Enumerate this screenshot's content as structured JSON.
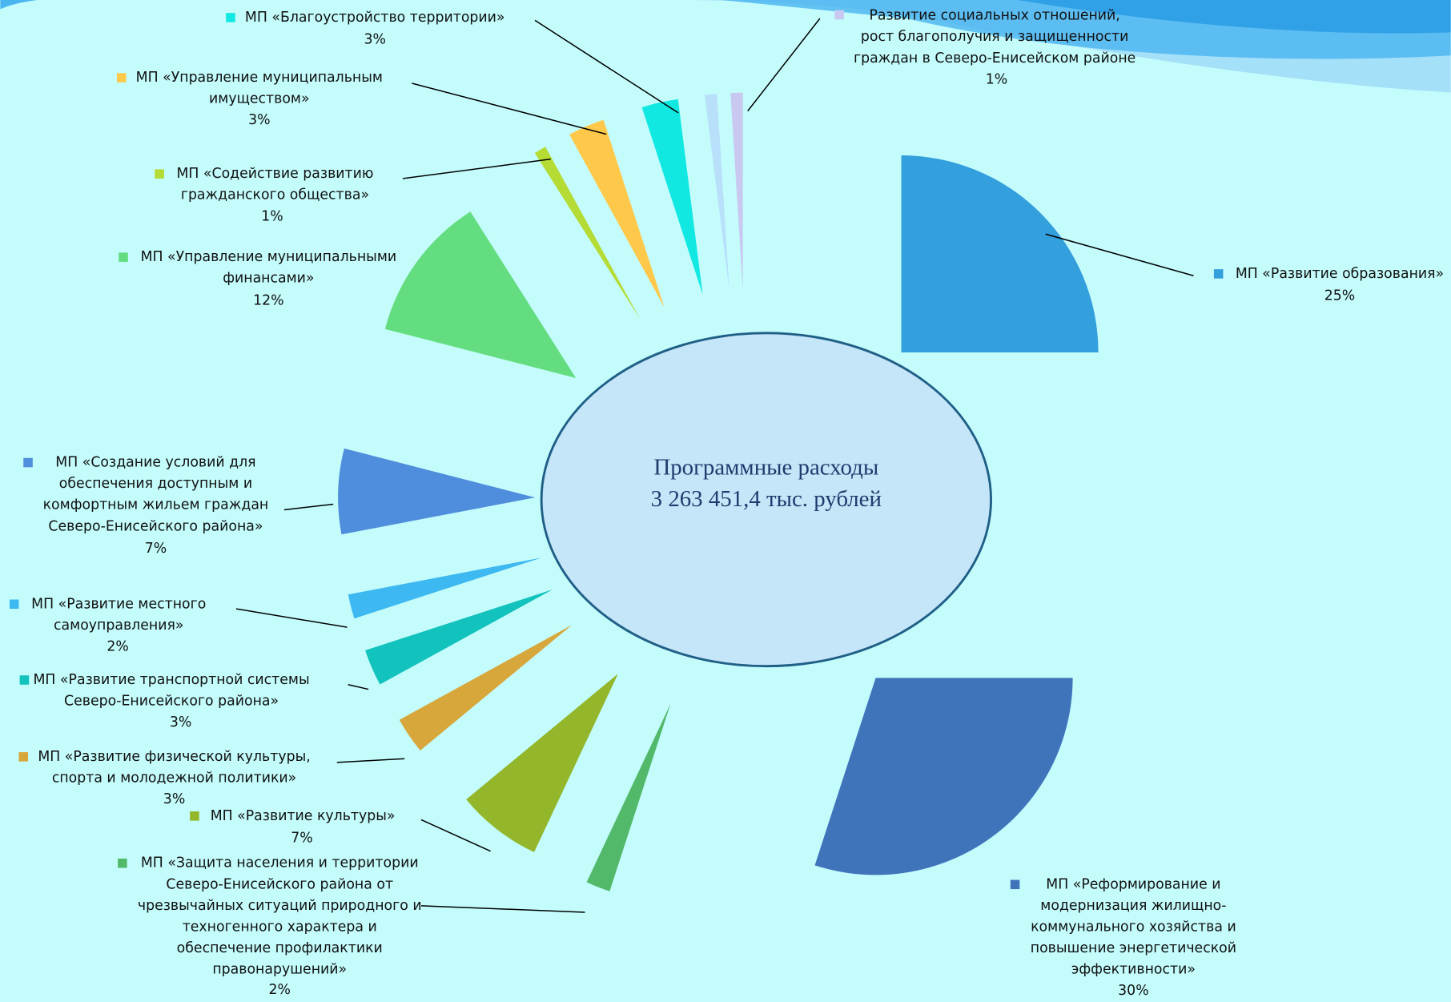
{
  "chart_data": {
    "type": "pie",
    "center_text": [
      "Программные расходы",
      "3 263 451,4 тыс. рублей"
    ],
    "categories": [
      "МП «Развитие образования»",
      "МП «Реформирование и\nмодернизация жилищно-\nкоммунального хозяйства и\nповышение энергетической\nэффективности»",
      "МП «Защита населения и территории\nСеверо-Енисейского района от\nчрезвычайных ситуаций природного и\nтехногенного характера и\nобеспечение профилактики\nправонарушений»",
      "МП «Развитие культуры»",
      "МП «Развитие физической культуры,\nспорта и молодежной политики»",
      "МП «Развитие транспортной системы\nСеверо-Енисейского района»",
      "МП «Развитие местного\nсамоуправления»",
      "МП «Создание условий для\nобеспечения доступным и\nкомфортным жильем граждан\nСеверо-Енисейского района»",
      "МП «Управление муниципальными\nфинансами»",
      "МП «Содействие развитию\nгражданского общества»",
      "МП «Управление муниципальным\nимуществом»",
      "МП «Благоустройство территории»",
      null,
      "Развитие социальных отношений,\nрост благополучия и защищенности\nграждан в Северо-Енисейском районе"
    ],
    "values": [
      25,
      30,
      2,
      7,
      3,
      3,
      2,
      7,
      12,
      1,
      3,
      3,
      1,
      1
    ],
    "value_labels": [
      "25%",
      "30%",
      "2%",
      "7%",
      "3%",
      "3%",
      "2%",
      "7%",
      "12%",
      "1%",
      "3%",
      "3%",
      null,
      "1%"
    ],
    "colors": [
      "#339fdd",
      "#3f74bb",
      "#52b86a",
      "#93b62a",
      "#d8a73c",
      "#12c2bd",
      "#3db8f0",
      "#4f8ddd",
      "#64dd80",
      "#b5db35",
      "#fec94a",
      "#12e8e2",
      "#b8e0fb",
      "#c8c8f0"
    ]
  }
}
